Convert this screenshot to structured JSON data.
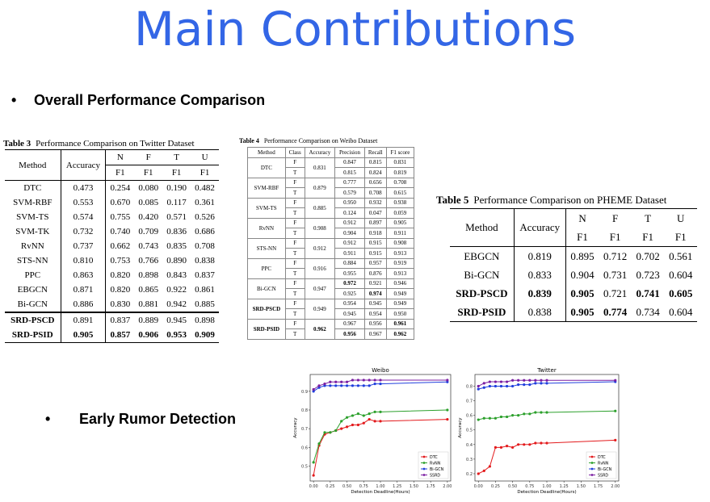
{
  "title": "Main Contributions",
  "bullets": {
    "overall": "Overall Performance Comparison",
    "early": "Early Rumor Detection"
  },
  "table3": {
    "caption_label": "Table 3",
    "caption_text": "Performance Comparison on Twitter Dataset",
    "headers": [
      "Method",
      "Accuracy",
      "N",
      "F",
      "T",
      "U",
      "F1",
      "F1",
      "F1",
      "F1"
    ],
    "rows": [
      [
        "DTC",
        "0.473",
        "0.254",
        "0.080",
        "0.190",
        "0.482"
      ],
      [
        "SVM-RBF",
        "0.553",
        "0.670",
        "0.085",
        "0.117",
        "0.361"
      ],
      [
        "SVM-TS",
        "0.574",
        "0.755",
        "0.420",
        "0.571",
        "0.526"
      ],
      [
        "SVM-TK",
        "0.732",
        "0.740",
        "0.709",
        "0.836",
        "0.686"
      ],
      [
        "RvNN",
        "0.737",
        "0.662",
        "0.743",
        "0.835",
        "0.708"
      ],
      [
        "STS-NN",
        "0.810",
        "0.753",
        "0.766",
        "0.890",
        "0.838"
      ],
      [
        "PPC",
        "0.863",
        "0.820",
        "0.898",
        "0.843",
        "0.837"
      ],
      [
        "EBGCN",
        "0.871",
        "0.820",
        "0.865",
        "0.922",
        "0.861"
      ],
      [
        "Bi-GCN",
        "0.886",
        "0.830",
        "0.881",
        "0.942",
        "0.885"
      ],
      [
        "SRD-PSCD",
        "0.891",
        "0.837",
        "0.889",
        "0.945",
        "0.898"
      ],
      [
        "SRD-PSID",
        "0.905",
        "0.857",
        "0.906",
        "0.953",
        "0.909"
      ]
    ]
  },
  "table4": {
    "caption_label": "Table 4",
    "caption_text": "Performance Comparison on Weibo Dataset",
    "headers": [
      "Method",
      "Class",
      "Accuracy",
      "Precision",
      "Recall",
      "F1 score"
    ],
    "groups": [
      {
        "method": "DTC",
        "acc": "0.831",
        "rows": [
          [
            "F",
            "0.847",
            "0.815",
            "0.831"
          ],
          [
            "T",
            "0.815",
            "0.824",
            "0.819"
          ]
        ]
      },
      {
        "method": "SVM-RBF",
        "acc": "0.879",
        "rows": [
          [
            "F",
            "0.777",
            "0.656",
            "0.708"
          ],
          [
            "T",
            "0.579",
            "0.708",
            "0.615"
          ]
        ]
      },
      {
        "method": "SVM-TS",
        "acc": "0.885",
        "rows": [
          [
            "F",
            "0.950",
            "0.932",
            "0.938"
          ],
          [
            "T",
            "0.124",
            "0.047",
            "0.059"
          ]
        ]
      },
      {
        "method": "RvNN",
        "acc": "0.908",
        "rows": [
          [
            "F",
            "0.912",
            "0.897",
            "0.905"
          ],
          [
            "T",
            "0.904",
            "0.918",
            "0.911"
          ]
        ]
      },
      {
        "method": "STS-NN",
        "acc": "0.912",
        "rows": [
          [
            "F",
            "0.912",
            "0.915",
            "0.908"
          ],
          [
            "T",
            "0.911",
            "0.915",
            "0.913"
          ]
        ]
      },
      {
        "method": "PPC",
        "acc": "0.916",
        "rows": [
          [
            "F",
            "0.884",
            "0.957",
            "0.919"
          ],
          [
            "T",
            "0.955",
            "0.876",
            "0.913"
          ]
        ]
      },
      {
        "method": "Bi-GCN",
        "acc": "0.947",
        "rows": [
          [
            "F",
            "0.972",
            "0.921",
            "0.946"
          ],
          [
            "T",
            "0.925",
            "0.974",
            "0.949"
          ]
        ]
      },
      {
        "method": "SRD-PSCD",
        "acc": "0.949",
        "rows": [
          [
            "F",
            "0.954",
            "0.945",
            "0.949"
          ],
          [
            "T",
            "0.945",
            "0.954",
            "0.950"
          ]
        ]
      },
      {
        "method": "SRD-PSID",
        "acc": "0.962",
        "rows": [
          [
            "F",
            "0.967",
            "0.956",
            "0.961"
          ],
          [
            "T",
            "0.956",
            "0.967",
            "0.962"
          ]
        ]
      }
    ]
  },
  "table5": {
    "caption_label": "Table 5",
    "caption_text": "Performance Comparison on PHEME Dataset",
    "headers": [
      "Method",
      "Accuracy",
      "N",
      "F",
      "T",
      "U",
      "F1",
      "F1",
      "F1",
      "F1"
    ],
    "rows": [
      [
        "EBGCN",
        "0.819",
        "0.895",
        "0.712",
        "0.702",
        "0.561"
      ],
      [
        "Bi-GCN",
        "0.833",
        "0.904",
        "0.731",
        "0.723",
        "0.604"
      ],
      [
        "SRD-PSCD",
        "0.839",
        "0.905",
        "0.721",
        "0.741",
        "0.605"
      ],
      [
        "SRD-PSID",
        "0.838",
        "0.905",
        "0.774",
        "0.734",
        "0.604"
      ]
    ]
  },
  "chart_data": [
    {
      "type": "line",
      "title": "Weibo",
      "xlabel": "Detection Deadline(Hours)",
      "ylabel": "Accuracy",
      "xlim": [
        -0.05,
        2.05
      ],
      "ylim": [
        0.42,
        0.99
      ],
      "xticks": [
        "0.00",
        "0.25",
        "0.50",
        "0.75",
        "1.00",
        "1.25",
        "1.50",
        "1.75",
        "2.00"
      ],
      "yticks": [
        "0.5",
        "0.6",
        "0.7",
        "0.8",
        "0.9"
      ],
      "x": [
        0,
        0.083,
        0.167,
        0.25,
        0.333,
        0.417,
        0.5,
        0.583,
        0.667,
        0.75,
        0.833,
        0.917,
        1.0,
        2.0
      ],
      "series": [
        {
          "name": "DTC",
          "color": "#e31a1c",
          "values": [
            0.45,
            0.61,
            0.67,
            0.68,
            0.69,
            0.7,
            0.71,
            0.72,
            0.72,
            0.73,
            0.75,
            0.74,
            0.74,
            0.75
          ]
        },
        {
          "name": "RvNN",
          "color": "#2ca02c",
          "values": [
            0.52,
            0.62,
            0.68,
            0.68,
            0.69,
            0.74,
            0.76,
            0.77,
            0.78,
            0.77,
            0.78,
            0.79,
            0.79,
            0.8
          ]
        },
        {
          "name": "Bi-GCN",
          "color": "#1f3fdd",
          "values": [
            0.9,
            0.92,
            0.93,
            0.93,
            0.93,
            0.93,
            0.93,
            0.93,
            0.93,
            0.93,
            0.93,
            0.94,
            0.94,
            0.95
          ]
        },
        {
          "name": "SSRD",
          "color": "#7b1fa2",
          "values": [
            0.91,
            0.93,
            0.94,
            0.95,
            0.95,
            0.95,
            0.95,
            0.96,
            0.96,
            0.96,
            0.96,
            0.96,
            0.96,
            0.96
          ]
        }
      ],
      "legend": "lower-right"
    },
    {
      "type": "line",
      "title": "Twitter",
      "xlabel": "Detection Deadline(Hours)",
      "ylabel": "Accuracy",
      "xlim": [
        -0.05,
        2.05
      ],
      "ylim": [
        0.15,
        0.88
      ],
      "xticks": [
        "0.00",
        "0.25",
        "0.50",
        "0.75",
        "1.00",
        "1.25",
        "1.50",
        "1.75",
        "2.00"
      ],
      "yticks": [
        "0.2",
        "0.3",
        "0.4",
        "0.5",
        "0.6",
        "0.7",
        "0.8"
      ],
      "x": [
        0,
        0.083,
        0.167,
        0.25,
        0.333,
        0.417,
        0.5,
        0.583,
        0.667,
        0.75,
        0.833,
        0.917,
        1.0,
        2.0
      ],
      "series": [
        {
          "name": "DTC",
          "color": "#e31a1c",
          "values": [
            0.2,
            0.22,
            0.25,
            0.38,
            0.38,
            0.39,
            0.38,
            0.4,
            0.4,
            0.4,
            0.41,
            0.41,
            0.41,
            0.43
          ]
        },
        {
          "name": "RvNN",
          "color": "#2ca02c",
          "values": [
            0.57,
            0.58,
            0.58,
            0.58,
            0.59,
            0.59,
            0.6,
            0.6,
            0.61,
            0.61,
            0.62,
            0.62,
            0.62,
            0.63
          ]
        },
        {
          "name": "Bi-GCN",
          "color": "#1f3fdd",
          "values": [
            0.78,
            0.79,
            0.8,
            0.8,
            0.8,
            0.8,
            0.8,
            0.81,
            0.81,
            0.81,
            0.82,
            0.82,
            0.82,
            0.83
          ]
        },
        {
          "name": "SSRD",
          "color": "#7b1fa2",
          "values": [
            0.8,
            0.82,
            0.83,
            0.83,
            0.83,
            0.83,
            0.84,
            0.84,
            0.84,
            0.84,
            0.84,
            0.84,
            0.84,
            0.84
          ]
        }
      ],
      "legend": "lower-right"
    }
  ]
}
